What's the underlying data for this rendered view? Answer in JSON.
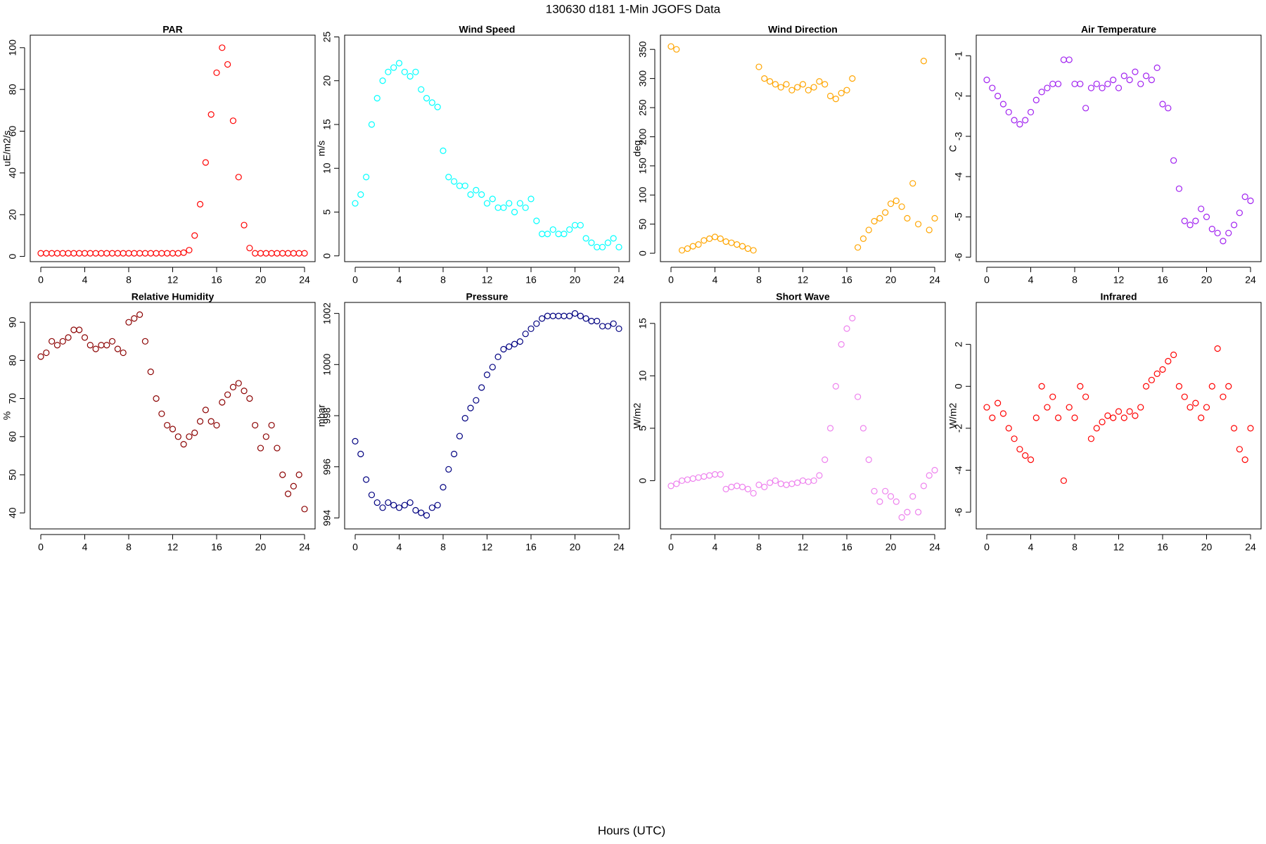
{
  "title": "130630   d181   1-Min  JGOFS Data",
  "xlabel": "Hours (UTC)",
  "chart_data": [
    {
      "type": "scatter",
      "title": "PAR",
      "ylabel": "uE/m2/s",
      "color": "#ff0000",
      "x": [
        0,
        0.5,
        1,
        1.5,
        2,
        2.5,
        3,
        3.5,
        4,
        4.5,
        5,
        5.5,
        6,
        6.5,
        7,
        7.5,
        8,
        8.5,
        9,
        9.5,
        10,
        10.5,
        11,
        11.5,
        12,
        12.5,
        13,
        13.5,
        14,
        14.5,
        15,
        15.5,
        16,
        16.5,
        17,
        17.5,
        18,
        18.5,
        19,
        19.5,
        20,
        20.5,
        21,
        21.5,
        22,
        22.5,
        23,
        23.5,
        24
      ],
      "values": [
        1.5,
        1.5,
        1.5,
        1.5,
        1.5,
        1.5,
        1.5,
        1.5,
        1.5,
        1.5,
        1.5,
        1.5,
        1.5,
        1.5,
        1.5,
        1.5,
        1.5,
        1.5,
        1.5,
        1.5,
        1.5,
        1.5,
        1.5,
        1.5,
        1.5,
        1.5,
        1.8,
        3,
        10,
        25,
        45,
        68,
        88,
        100,
        92,
        65,
        38,
        15,
        4,
        1.5,
        1.5,
        1.5,
        1.5,
        1.5,
        1.5,
        1.5,
        1.5,
        1.5,
        1.5
      ],
      "xlim": [
        -0.96,
        24.96
      ],
      "xticks": [
        0,
        4,
        8,
        12,
        16,
        20,
        24
      ],
      "ylim": [
        -2.5,
        106
      ],
      "yticks": [
        0,
        20,
        40,
        60,
        80,
        100
      ]
    },
    {
      "type": "scatter",
      "title": "Wind Speed",
      "ylabel": "m/s",
      "color": "#00ffff",
      "x": [
        0,
        0.5,
        1,
        1.5,
        2,
        2.5,
        3,
        3.5,
        4,
        4.5,
        5,
        5.5,
        6,
        6.5,
        7,
        7.5,
        8,
        8.5,
        9,
        9.5,
        10,
        10.5,
        11,
        11.5,
        12,
        12.5,
        13,
        13.5,
        14,
        14.5,
        15,
        15.5,
        16,
        16.5,
        17,
        17.5,
        18,
        18.5,
        19,
        19.5,
        20,
        20.5,
        21,
        21.5,
        22,
        22.5,
        23,
        23.5,
        24
      ],
      "values": [
        6,
        7,
        9,
        15,
        18,
        20,
        21,
        21.5,
        22,
        21,
        20.5,
        21,
        19,
        18,
        17.5,
        17,
        12,
        9,
        8.5,
        8,
        8,
        7,
        7.5,
        7,
        6,
        6.5,
        5.5,
        5.5,
        6,
        5,
        6,
        5.5,
        6.5,
        4,
        2.5,
        2.5,
        3,
        2.5,
        2.5,
        3,
        3.5,
        3.5,
        2,
        1.5,
        1,
        1,
        1.5,
        2,
        1
      ],
      "xlim": [
        -0.96,
        24.96
      ],
      "xticks": [
        0,
        4,
        8,
        12,
        16,
        20,
        24
      ],
      "ylim": [
        -0.66,
        25.2
      ],
      "yticks": [
        0,
        5,
        10,
        15,
        20,
        25
      ]
    },
    {
      "type": "scatter",
      "title": "Wind Direction",
      "ylabel": "deg",
      "color": "#ffa500",
      "x": [
        0,
        0.5,
        1,
        1.5,
        2,
        2.5,
        3,
        3.5,
        4,
        4.5,
        5,
        5.5,
        6,
        6.5,
        7,
        7.5,
        8,
        8.5,
        9,
        9.5,
        10,
        10.5,
        11,
        11.5,
        12,
        12.5,
        13,
        13.5,
        14,
        14.5,
        15,
        15.5,
        16,
        16.5,
        17,
        17.5,
        18,
        18.5,
        19,
        19.5,
        20,
        20.5,
        21,
        21.5,
        22,
        22.5,
        23,
        23.5,
        24
      ],
      "values": [
        355,
        350,
        5,
        8,
        12,
        15,
        22,
        25,
        28,
        25,
        20,
        18,
        15,
        12,
        8,
        5,
        320,
        300,
        295,
        290,
        285,
        290,
        280,
        285,
        290,
        280,
        285,
        295,
        290,
        270,
        265,
        275,
        280,
        300,
        10,
        25,
        40,
        55,
        60,
        70,
        85,
        90,
        80,
        60,
        120,
        50,
        330,
        40,
        60
      ],
      "xlim": [
        -0.96,
        24.96
      ],
      "xticks": [
        0,
        4,
        8,
        12,
        16,
        20,
        24
      ],
      "ylim": [
        -14.4,
        374.4
      ],
      "yticks": [
        0,
        50,
        100,
        150,
        200,
        250,
        300,
        350
      ]
    },
    {
      "type": "scatter",
      "title": "Air Temperature",
      "ylabel": "C",
      "color": "#a020f0",
      "x": [
        0,
        0.5,
        1,
        1.5,
        2,
        2.5,
        3,
        3.5,
        4,
        4.5,
        5,
        5.5,
        6,
        6.5,
        7,
        7.5,
        8,
        8.5,
        9,
        9.5,
        10,
        10.5,
        11,
        11.5,
        12,
        12.5,
        13,
        13.5,
        14,
        14.5,
        15,
        15.5,
        16,
        16.5,
        17,
        17.5,
        18,
        18.5,
        19,
        19.5,
        20,
        20.5,
        21,
        21.5,
        22,
        22.5,
        23,
        23.5,
        24
      ],
      "values": [
        -1.6,
        -1.8,
        -2.0,
        -2.2,
        -2.4,
        -2.6,
        -2.7,
        -2.6,
        -2.4,
        -2.1,
        -1.9,
        -1.8,
        -1.7,
        -1.7,
        -1.1,
        -1.1,
        -1.7,
        -1.7,
        -2.3,
        -1.8,
        -1.7,
        -1.8,
        -1.7,
        -1.6,
        -1.8,
        -1.5,
        -1.6,
        -1.4,
        -1.7,
        -1.5,
        -1.6,
        -1.3,
        -2.2,
        -2.3,
        -3.6,
        -4.3,
        -5.1,
        -5.2,
        -5.1,
        -4.8,
        -5.0,
        -5.3,
        -5.4,
        -5.6,
        -5.4,
        -5.2,
        -4.9,
        -4.5,
        -4.6
      ],
      "xlim": [
        -0.96,
        24.96
      ],
      "xticks": [
        0,
        4,
        8,
        12,
        16,
        20,
        24
      ],
      "ylim": [
        -6.11,
        -0.49
      ],
      "yticks": [
        -6,
        -5,
        -4,
        -3,
        -2,
        -1
      ]
    },
    {
      "type": "scatter",
      "title": "Relative Humidity",
      "ylabel": "%",
      "color": "#8b0000",
      "x": [
        0,
        0.5,
        1,
        1.5,
        2,
        2.5,
        3,
        3.5,
        4,
        4.5,
        5,
        5.5,
        6,
        6.5,
        7,
        7.5,
        8,
        8.5,
        9,
        9.5,
        10,
        10.5,
        11,
        11.5,
        12,
        12.5,
        13,
        13.5,
        14,
        14.5,
        15,
        15.5,
        16,
        16.5,
        17,
        17.5,
        18,
        18.5,
        19,
        19.5,
        20,
        20.5,
        21,
        21.5,
        22,
        22.5,
        23,
        23.5,
        24
      ],
      "values": [
        81,
        82,
        85,
        84,
        85,
        86,
        88,
        88,
        86,
        84,
        83,
        84,
        84,
        85,
        83,
        82,
        90,
        91,
        92,
        85,
        77,
        70,
        66,
        63,
        62,
        60,
        58,
        60,
        61,
        64,
        67,
        64,
        63,
        69,
        71,
        73,
        74,
        72,
        70,
        63,
        57,
        60,
        63,
        57,
        50,
        45,
        47,
        50,
        41
      ],
      "xlim": [
        -0.96,
        24.96
      ],
      "xticks": [
        0,
        4,
        8,
        12,
        16,
        20,
        24
      ],
      "ylim": [
        35.8,
        95.2
      ],
      "yticks": [
        40,
        50,
        60,
        70,
        80,
        90
      ]
    },
    {
      "type": "scatter",
      "title": "Pressure",
      "ylabel": "mbar",
      "color": "#000080",
      "x": [
        0,
        0.5,
        1,
        1.5,
        2,
        2.5,
        3,
        3.5,
        4,
        4.5,
        5,
        5.5,
        6,
        6.5,
        7,
        7.5,
        8,
        8.5,
        9,
        9.5,
        10,
        10.5,
        11,
        11.5,
        12,
        12.5,
        13,
        13.5,
        14,
        14.5,
        15,
        15.5,
        16,
        16.5,
        17,
        17.5,
        18,
        18.5,
        19,
        19.5,
        20,
        20.5,
        21,
        21.5,
        22,
        22.5,
        23,
        23.5,
        24
      ],
      "values": [
        997,
        996.5,
        995.5,
        994.9,
        994.6,
        994.4,
        994.6,
        994.5,
        994.4,
        994.5,
        994.6,
        994.3,
        994.2,
        994.1,
        994.4,
        994.5,
        995.2,
        995.9,
        996.5,
        997.2,
        997.9,
        998.3,
        998.6,
        999.1,
        999.6,
        999.9,
        1000.3,
        1000.6,
        1000.7,
        1000.8,
        1000.9,
        1001.2,
        1001.4,
        1001.6,
        1001.8,
        1001.9,
        1001.9,
        1001.9,
        1001.9,
        1001.9,
        1002.0,
        1001.9,
        1001.8,
        1001.7,
        1001.7,
        1001.5,
        1001.5,
        1001.6,
        1001.4
      ],
      "xlim": [
        -0.96,
        24.96
      ],
      "xticks": [
        0,
        4,
        8,
        12,
        16,
        20,
        24
      ],
      "ylim": [
        993.57,
        1002.43
      ],
      "yticks": [
        994,
        996,
        998,
        1000,
        1002
      ]
    },
    {
      "type": "scatter",
      "title": "Short Wave",
      "ylabel": "W/m2",
      "color": "#ee82ee",
      "x": [
        0,
        0.5,
        1,
        1.5,
        2,
        2.5,
        3,
        3.5,
        4,
        4.5,
        5,
        5.5,
        6,
        6.5,
        7,
        7.5,
        8,
        8.5,
        9,
        9.5,
        10,
        10.5,
        11,
        11.5,
        12,
        12.5,
        13,
        13.5,
        14,
        14.5,
        15,
        15.5,
        16,
        16.5,
        17,
        17.5,
        18,
        18.5,
        19,
        19.5,
        20,
        20.5,
        21,
        21.5,
        22,
        22.5,
        23,
        23.5,
        24
      ],
      "values": [
        -0.5,
        -0.3,
        0,
        0.1,
        0.2,
        0.3,
        0.4,
        0.5,
        0.6,
        0.6,
        -0.8,
        -0.6,
        -0.5,
        -0.6,
        -0.8,
        -1.2,
        -0.4,
        -0.6,
        -0.2,
        0,
        -0.3,
        -0.4,
        -0.3,
        -0.2,
        0,
        -0.1,
        0,
        0.5,
        2,
        5,
        9,
        13,
        14.5,
        15.5,
        8,
        5,
        2,
        -1,
        -2,
        -1,
        -1.5,
        -2,
        -3.5,
        -3,
        -1.5,
        -3,
        -0.5,
        0.5,
        1
      ],
      "xlim": [
        -0.96,
        24.96
      ],
      "xticks": [
        0,
        4,
        8,
        12,
        16,
        20,
        24
      ],
      "ylim": [
        -4.6,
        17
      ],
      "yticks": [
        0,
        5,
        10,
        15
      ]
    },
    {
      "type": "scatter",
      "title": "Infrared",
      "ylabel": "W/m2",
      "color": "#ff0000",
      "x": [
        0,
        0.5,
        1,
        1.5,
        2,
        2.5,
        3,
        3.5,
        4,
        4.5,
        5,
        5.5,
        6,
        6.5,
        7,
        7.5,
        8,
        8.5,
        9,
        9.5,
        10,
        10.5,
        11,
        11.5,
        12,
        12.5,
        13,
        13.5,
        14,
        14.5,
        15,
        15.5,
        16,
        16.5,
        17,
        17.5,
        18,
        18.5,
        19,
        19.5,
        20,
        20.5,
        21,
        21.5,
        22,
        22.5,
        23,
        23.5,
        24
      ],
      "values": [
        -1,
        -1.5,
        -0.8,
        -1.3,
        -2,
        -2.5,
        -3,
        -3.3,
        -3.5,
        -1.5,
        0,
        -1,
        -0.5,
        -1.5,
        -4.5,
        -1,
        -1.5,
        0,
        -0.5,
        -2.5,
        -2,
        -1.7,
        -1.4,
        -1.5,
        -1.2,
        -1.5,
        -1.2,
        -1.4,
        -1,
        0,
        0.3,
        0.6,
        0.8,
        1.2,
        1.5,
        0,
        -0.5,
        -1,
        -0.8,
        -1.5,
        -1,
        0,
        1.8,
        -0.5,
        0,
        -2,
        -3,
        -3.5,
        -2
      ],
      "xlim": [
        -0.96,
        24.96
      ],
      "xticks": [
        0,
        4,
        8,
        12,
        16,
        20,
        24
      ],
      "ylim": [
        -6.8,
        4.0
      ],
      "yticks": [
        -6,
        -4,
        -2,
        0,
        2
      ]
    }
  ]
}
